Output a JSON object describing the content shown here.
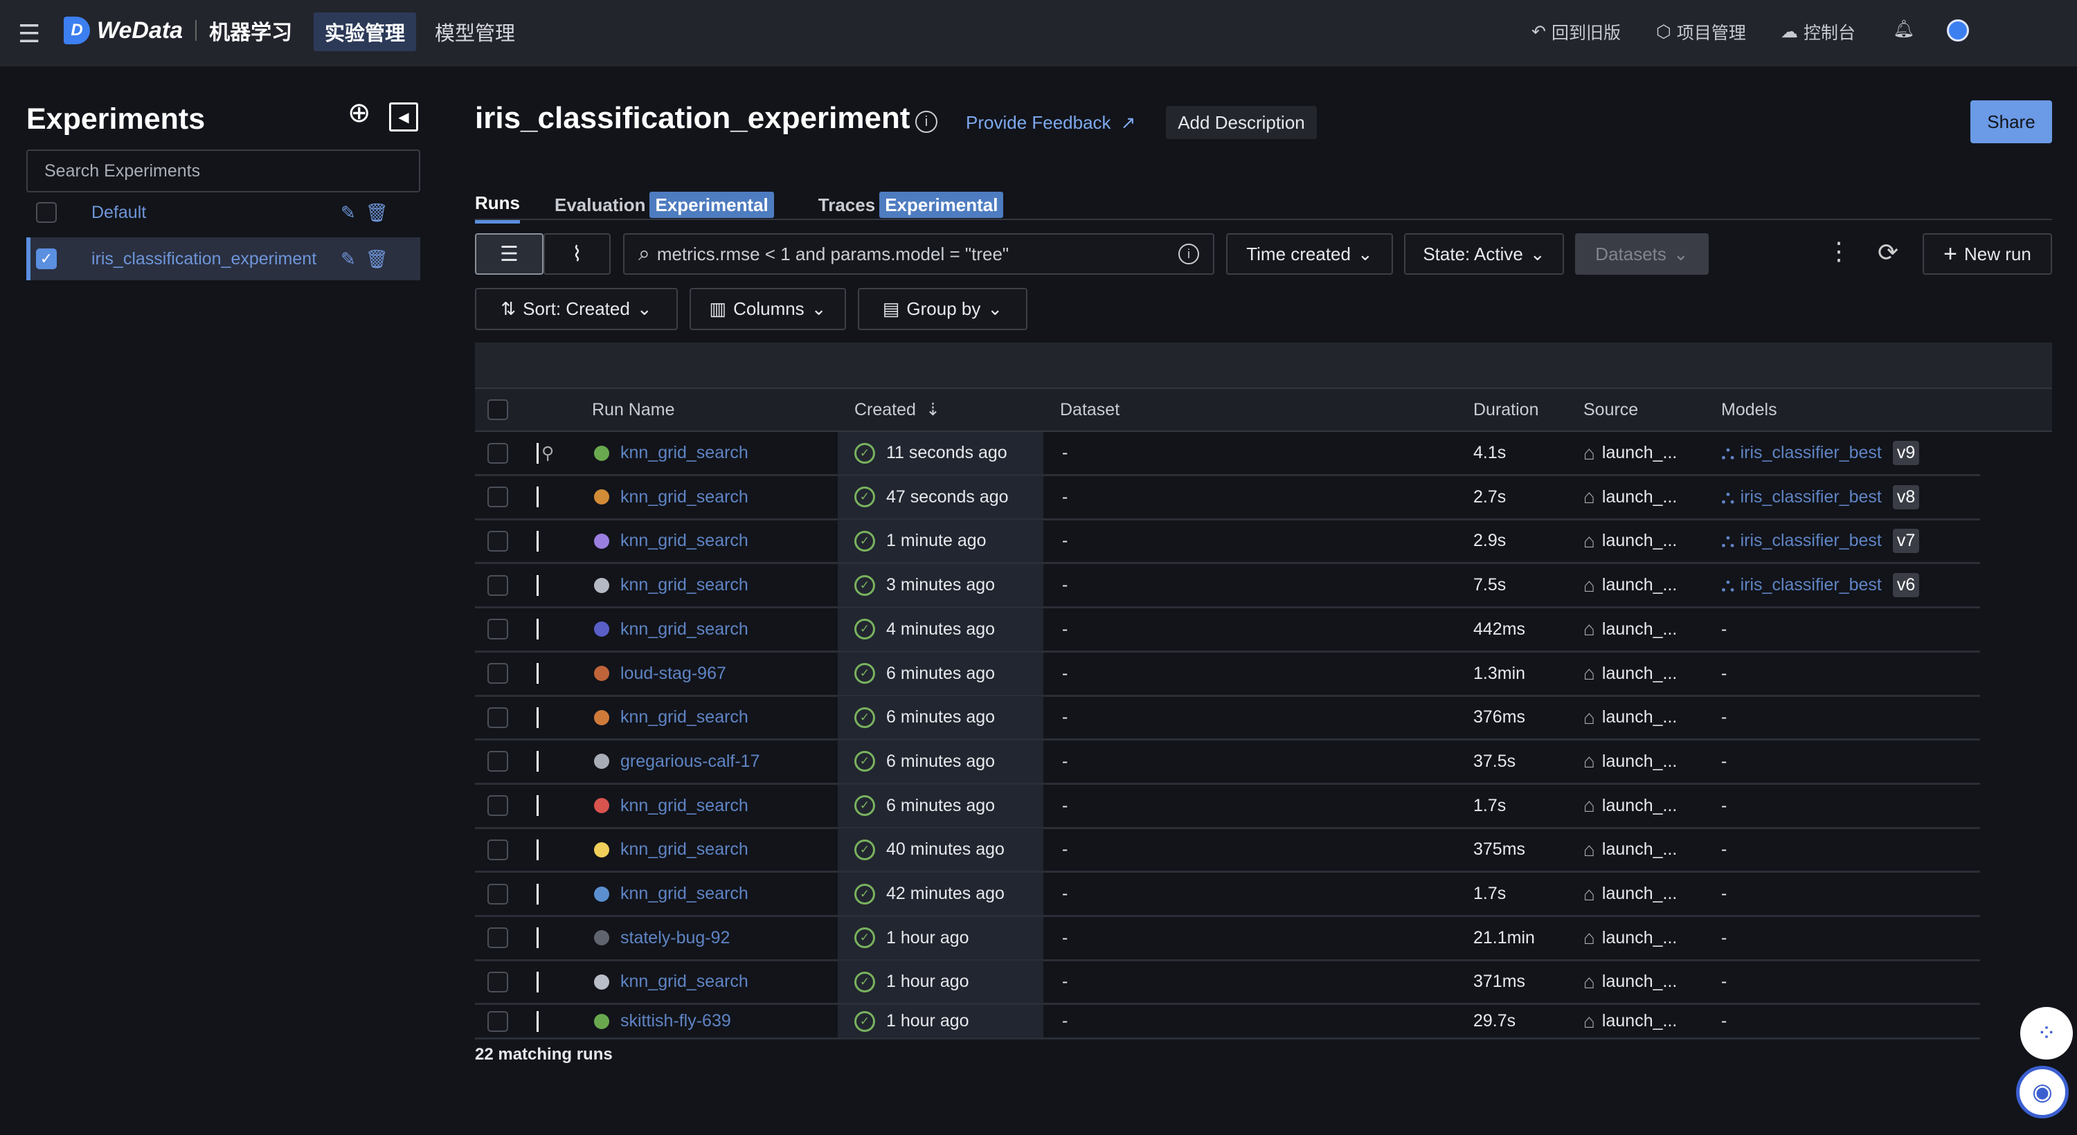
{
  "topbar": {
    "logo_text": "WeData",
    "product": "机器学习",
    "nav": [
      "实验管理",
      "模型管理"
    ],
    "right": [
      {
        "icon": "undo-icon",
        "label": "回到旧版"
      },
      {
        "icon": "settings-hexagon-icon",
        "label": "项目管理"
      },
      {
        "icon": "cloud-icon",
        "label": "控制台"
      }
    ]
  },
  "sidebar": {
    "title": "Experiments",
    "search_placeholder": "Search Experiments",
    "experiments": [
      {
        "name": "Default",
        "checked": false
      },
      {
        "name": "iris_classification_experiment",
        "checked": true
      }
    ]
  },
  "header": {
    "title": "iris_classification_experiment",
    "feedback": "Provide Feedback",
    "add_description": "Add Description",
    "share": "Share"
  },
  "tabs": [
    {
      "label": "Runs",
      "badge": ""
    },
    {
      "label": "Evaluation",
      "badge": "Experimental"
    },
    {
      "label": "Traces",
      "badge": "Experimental"
    }
  ],
  "toolbar": {
    "search_value": "metrics.rmse < 1 and params.model = \"tree\"",
    "time_created": "Time created",
    "state": "State: Active",
    "datasets": "Datasets",
    "new_run": "New run",
    "sort": "Sort: Created",
    "columns": "Columns",
    "group_by": "Group by"
  },
  "table": {
    "headers": {
      "run_name": "Run Name",
      "created": "Created",
      "dataset": "Dataset",
      "duration": "Duration",
      "source": "Source",
      "models": "Models"
    },
    "rows": [
      {
        "name": "knn_grid_search",
        "color": "#6aa84f",
        "created": "11 seconds ago",
        "dataset": "-",
        "duration": "4.1s",
        "source": "launch_...",
        "model": "iris_classifier_best",
        "version": "v9"
      },
      {
        "name": "knn_grid_search",
        "color": "#d28b36",
        "created": "47 seconds ago",
        "dataset": "-",
        "duration": "2.7s",
        "source": "launch_...",
        "model": "iris_classifier_best",
        "version": "v8"
      },
      {
        "name": "knn_grid_search",
        "color": "#9a7fe0",
        "created": "1 minute ago",
        "dataset": "-",
        "duration": "2.9s",
        "source": "launch_...",
        "model": "iris_classifier_best",
        "version": "v7"
      },
      {
        "name": "knn_grid_search",
        "color": "#b4b9c4",
        "created": "3 minutes ago",
        "dataset": "-",
        "duration": "7.5s",
        "source": "launch_...",
        "model": "iris_classifier_best",
        "version": "v6"
      },
      {
        "name": "knn_grid_search",
        "color": "#5a5fc8",
        "created": "4 minutes ago",
        "dataset": "-",
        "duration": "442ms",
        "source": "launch_...",
        "model": "-",
        "version": ""
      },
      {
        "name": "loud-stag-967",
        "color": "#c0643a",
        "created": "6 minutes ago",
        "dataset": "-",
        "duration": "1.3min",
        "source": "launch_...",
        "model": "-",
        "version": ""
      },
      {
        "name": "knn_grid_search",
        "color": "#d07a3a",
        "created": "6 minutes ago",
        "dataset": "-",
        "duration": "376ms",
        "source": "launch_...",
        "model": "-",
        "version": ""
      },
      {
        "name": "gregarious-calf-17",
        "color": "#a9adb6",
        "created": "6 minutes ago",
        "dataset": "-",
        "duration": "37.5s",
        "source": "launch_...",
        "model": "-",
        "version": ""
      },
      {
        "name": "knn_grid_search",
        "color": "#d9534f",
        "created": "6 minutes ago",
        "dataset": "-",
        "duration": "1.7s",
        "source": "launch_...",
        "model": "-",
        "version": ""
      },
      {
        "name": "knn_grid_search",
        "color": "#f0cf5a",
        "created": "40 minutes ago",
        "dataset": "-",
        "duration": "375ms",
        "source": "launch_...",
        "model": "-",
        "version": ""
      },
      {
        "name": "knn_grid_search",
        "color": "#5b8fd0",
        "created": "42 minutes ago",
        "dataset": "-",
        "duration": "1.7s",
        "source": "launch_...",
        "model": "-",
        "version": ""
      },
      {
        "name": "stately-bug-92",
        "color": "#60646e",
        "created": "1 hour ago",
        "dataset": "-",
        "duration": "21.1min",
        "source": "launch_...",
        "model": "-",
        "version": ""
      },
      {
        "name": "knn_grid_search",
        "color": "#b9bec8",
        "created": "1 hour ago",
        "dataset": "-",
        "duration": "371ms",
        "source": "launch_...",
        "model": "-",
        "version": ""
      },
      {
        "name": "skittish-fly-639",
        "color": "#6aa84f",
        "created": "1 hour ago",
        "dataset": "-",
        "duration": "29.7s",
        "source": "launch_...",
        "model": "-",
        "version": ""
      }
    ]
  },
  "footer": {
    "matching": "22 matching runs"
  },
  "colors": {
    "accent": "#5b8fe0",
    "link": "#6e95d8",
    "success": "#79b25e"
  }
}
